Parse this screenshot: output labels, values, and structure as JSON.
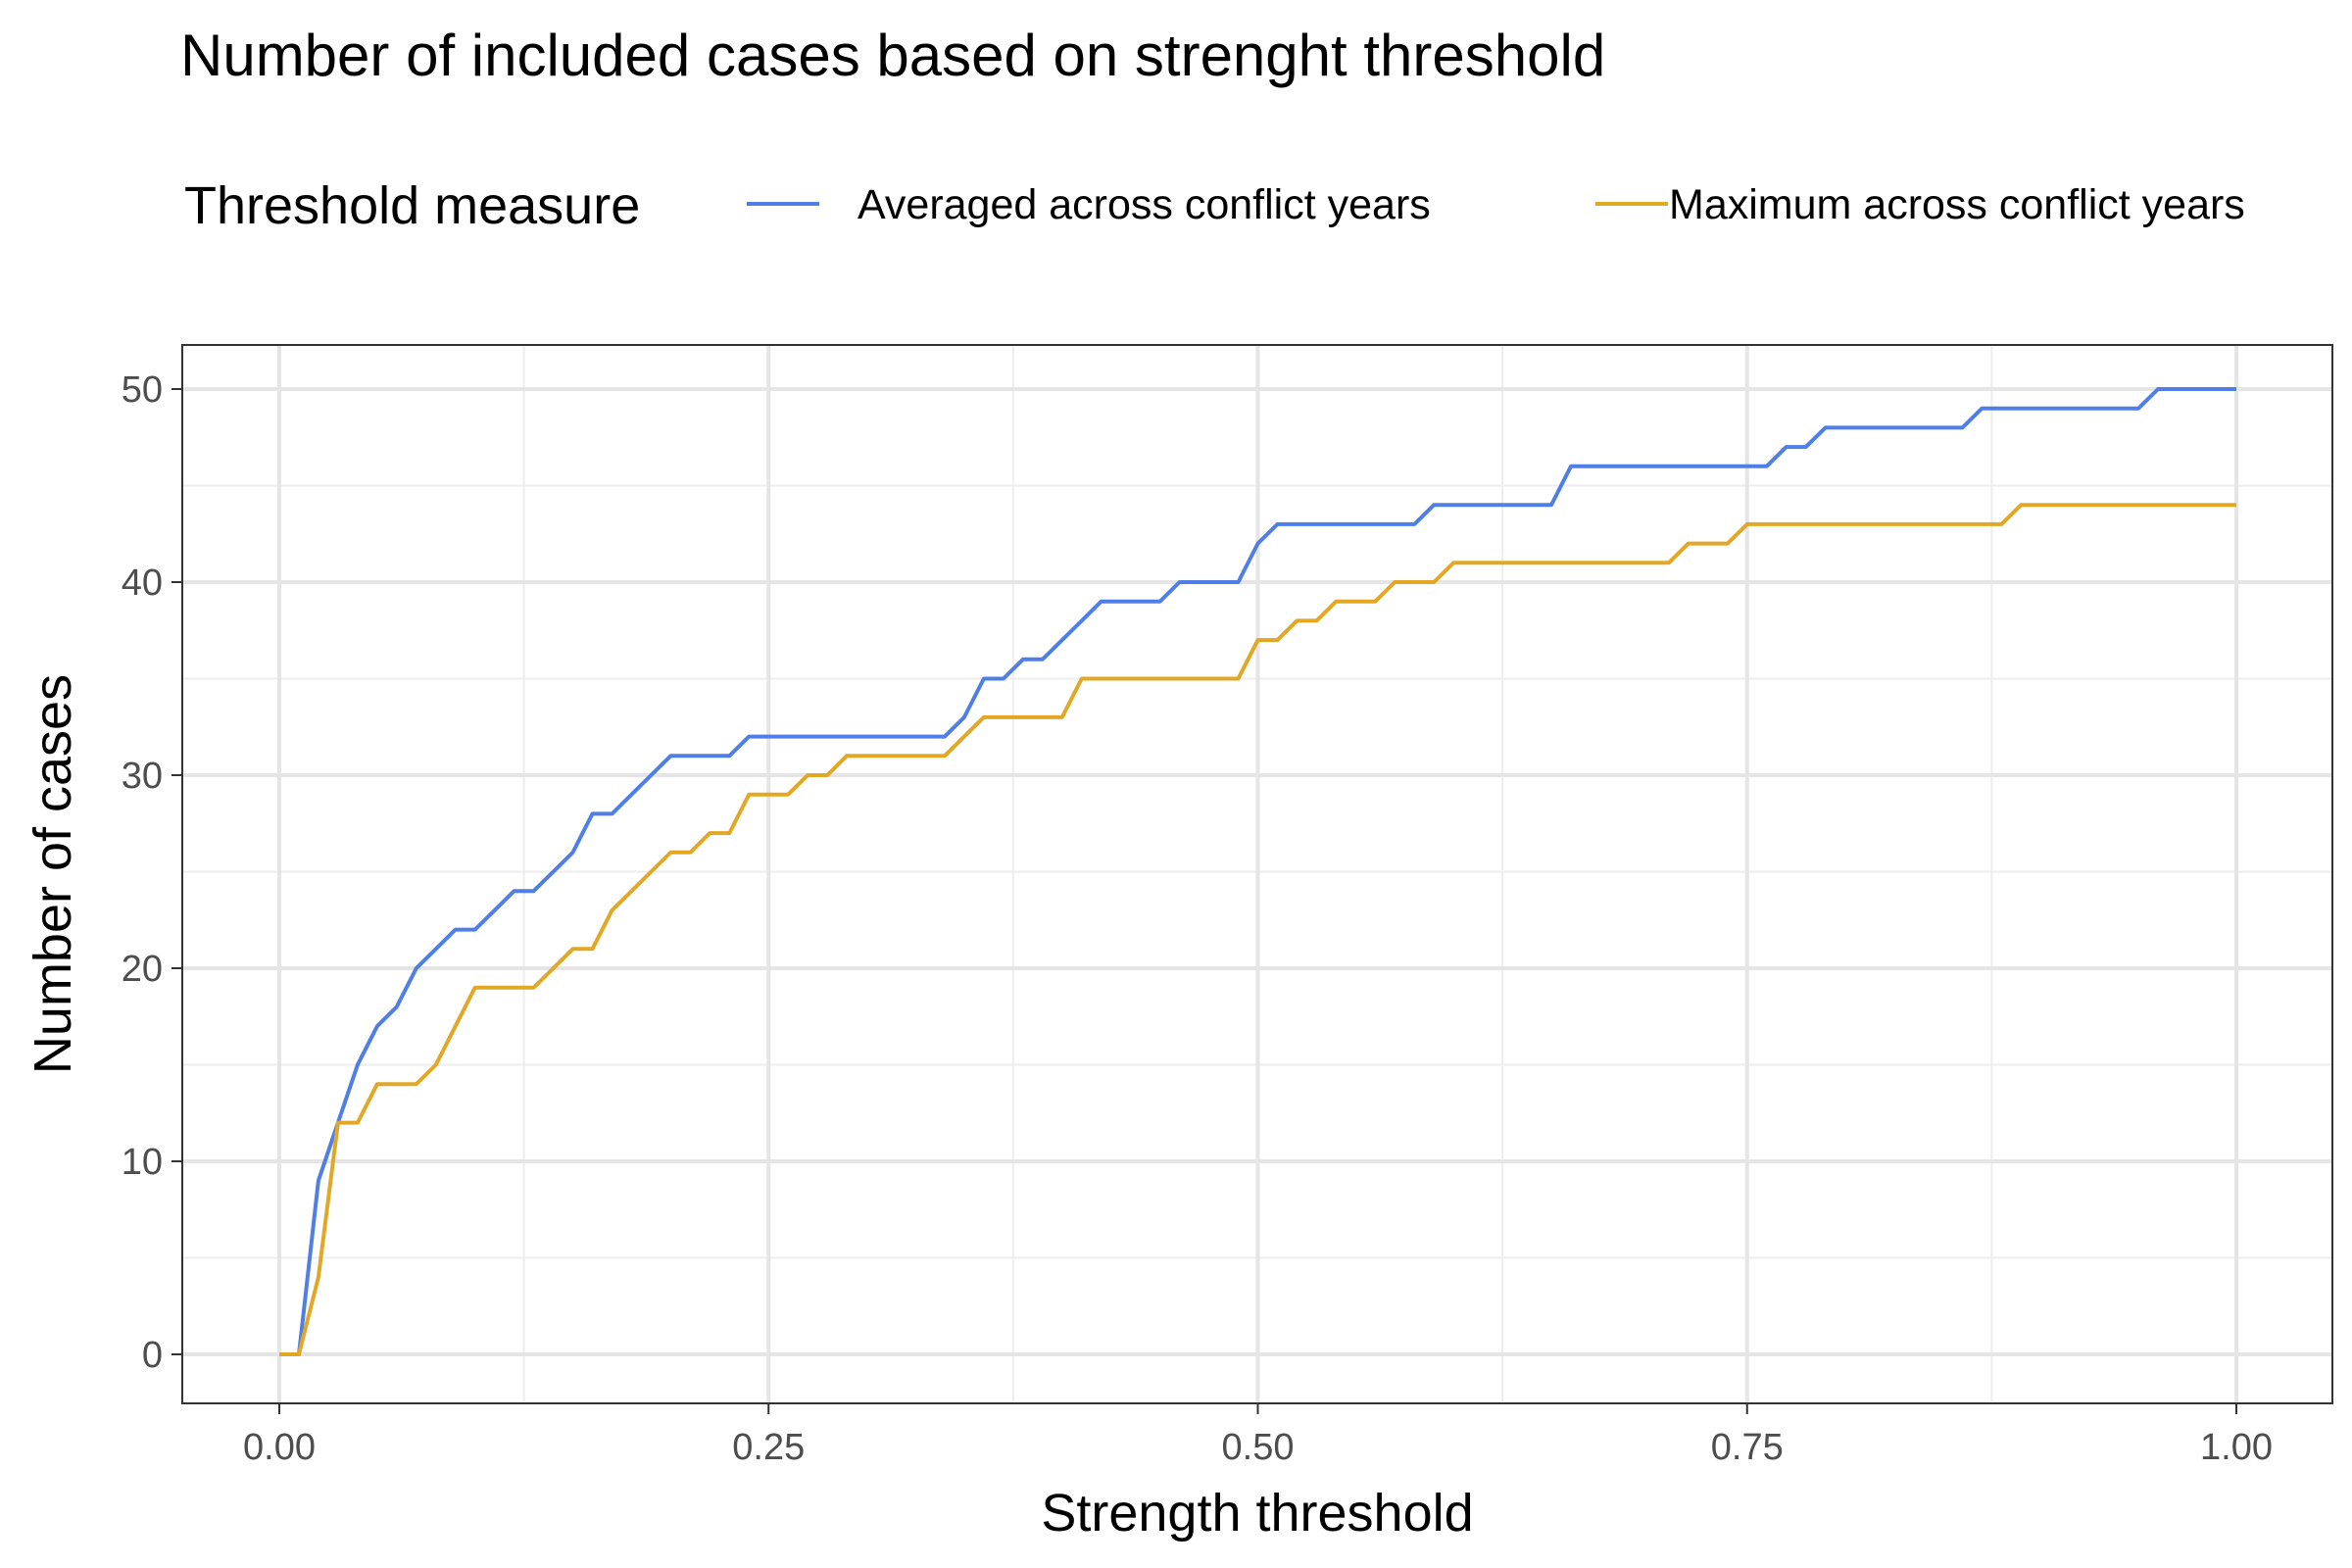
{
  "chart_data": {
    "type": "line",
    "title": "Number of included cases based on strenght threshold",
    "xlabel": "Strength threshold",
    "ylabel": "Number of cases",
    "xlim": [
      0,
      1
    ],
    "ylim": [
      0,
      50
    ],
    "x_ticks": [
      "0.00",
      "0.25",
      "0.50",
      "0.75",
      "1.00"
    ],
    "y_ticks": [
      "0",
      "10",
      "20",
      "30",
      "40",
      "50"
    ],
    "grid": true,
    "legend": {
      "title": "Threshold measure",
      "position": "top"
    },
    "colors": {
      "Averaged across conflict years": "#4f7fe6",
      "Maximum across conflict years": "#e3a726"
    },
    "series": [
      {
        "name": "Averaged across conflict years",
        "color": "#4f7fe6",
        "x": [
          0.0,
          0.01,
          0.02,
          0.03,
          0.04,
          0.05,
          0.06,
          0.07,
          0.08,
          0.09,
          0.1,
          0.11,
          0.12,
          0.13,
          0.14,
          0.15,
          0.16,
          0.17,
          0.18,
          0.19,
          0.2,
          0.21,
          0.22,
          0.23,
          0.24,
          0.25,
          0.26,
          0.27,
          0.28,
          0.29,
          0.3,
          0.31,
          0.32,
          0.33,
          0.34,
          0.35,
          0.36,
          0.37,
          0.38,
          0.39,
          0.4,
          0.41,
          0.42,
          0.43,
          0.44,
          0.45,
          0.46,
          0.47,
          0.48,
          0.49,
          0.5,
          0.51,
          0.52,
          0.53,
          0.54,
          0.55,
          0.56,
          0.57,
          0.58,
          0.59,
          0.6,
          0.61,
          0.62,
          0.63,
          0.64,
          0.65,
          0.66,
          0.67,
          0.68,
          0.69,
          0.7,
          0.71,
          0.72,
          0.73,
          0.74,
          0.75,
          0.76,
          0.77,
          0.78,
          0.79,
          0.8,
          0.81,
          0.82,
          0.83,
          0.84,
          0.85,
          0.86,
          0.87,
          0.88,
          0.89,
          0.9,
          0.91,
          0.92,
          0.93,
          0.94,
          0.95,
          0.96,
          0.97,
          0.98,
          0.99,
          1.0
        ],
        "y": [
          0,
          0,
          9,
          12,
          15,
          17,
          18,
          20,
          21,
          22,
          22,
          23,
          24,
          24,
          25,
          26,
          28,
          28,
          29,
          30,
          31,
          31,
          31,
          31,
          32,
          32,
          32,
          32,
          32,
          32,
          32,
          32,
          32,
          32,
          32,
          33,
          35,
          35,
          36,
          36,
          37,
          38,
          39,
          39,
          39,
          39,
          40,
          40,
          40,
          40,
          42,
          43,
          43,
          43,
          43,
          43,
          43,
          43,
          43,
          44,
          44,
          44,
          44,
          44,
          44,
          44,
          46,
          46,
          46,
          46,
          46,
          46,
          46,
          46,
          46,
          46,
          46,
          47,
          47,
          48,
          48,
          48,
          48,
          48,
          48,
          48,
          48,
          49,
          49,
          49,
          49,
          49,
          49,
          49,
          49,
          49,
          50,
          50,
          50,
          50,
          50
        ]
      },
      {
        "name": "Maximum across conflict years",
        "color": "#e3a726",
        "x": [
          0.0,
          0.01,
          0.02,
          0.03,
          0.04,
          0.05,
          0.06,
          0.07,
          0.08,
          0.09,
          0.1,
          0.11,
          0.12,
          0.13,
          0.14,
          0.15,
          0.16,
          0.17,
          0.18,
          0.19,
          0.2,
          0.21,
          0.22,
          0.23,
          0.24,
          0.25,
          0.26,
          0.27,
          0.28,
          0.29,
          0.3,
          0.31,
          0.32,
          0.33,
          0.34,
          0.35,
          0.36,
          0.37,
          0.38,
          0.39,
          0.4,
          0.41,
          0.42,
          0.43,
          0.44,
          0.45,
          0.46,
          0.47,
          0.48,
          0.49,
          0.5,
          0.51,
          0.52,
          0.53,
          0.54,
          0.55,
          0.56,
          0.57,
          0.58,
          0.59,
          0.6,
          0.61,
          0.62,
          0.63,
          0.64,
          0.65,
          0.66,
          0.67,
          0.68,
          0.69,
          0.7,
          0.71,
          0.72,
          0.73,
          0.74,
          0.75,
          0.76,
          0.77,
          0.78,
          0.79,
          0.8,
          0.81,
          0.82,
          0.83,
          0.84,
          0.85,
          0.86,
          0.87,
          0.88,
          0.89,
          0.9,
          0.91,
          0.92,
          0.93,
          0.94,
          0.95,
          0.96,
          0.97,
          0.98,
          0.99,
          1.0
        ],
        "y": [
          0,
          0,
          4,
          12,
          12,
          14,
          14,
          14,
          15,
          17,
          19,
          19,
          19,
          19,
          20,
          21,
          21,
          23,
          24,
          25,
          26,
          26,
          27,
          27,
          29,
          29,
          29,
          30,
          30,
          31,
          31,
          31,
          31,
          31,
          31,
          32,
          33,
          33,
          33,
          33,
          33,
          35,
          35,
          35,
          35,
          35,
          35,
          35,
          35,
          35,
          37,
          37,
          38,
          38,
          39,
          39,
          39,
          40,
          40,
          40,
          41,
          41,
          41,
          41,
          41,
          41,
          41,
          41,
          41,
          41,
          41,
          41,
          42,
          42,
          42,
          43,
          43,
          43,
          43,
          43,
          43,
          43,
          43,
          43,
          43,
          43,
          43,
          43,
          43,
          44,
          44,
          44,
          44,
          44,
          44,
          44,
          44,
          44,
          44,
          44,
          44
        ]
      }
    ]
  }
}
